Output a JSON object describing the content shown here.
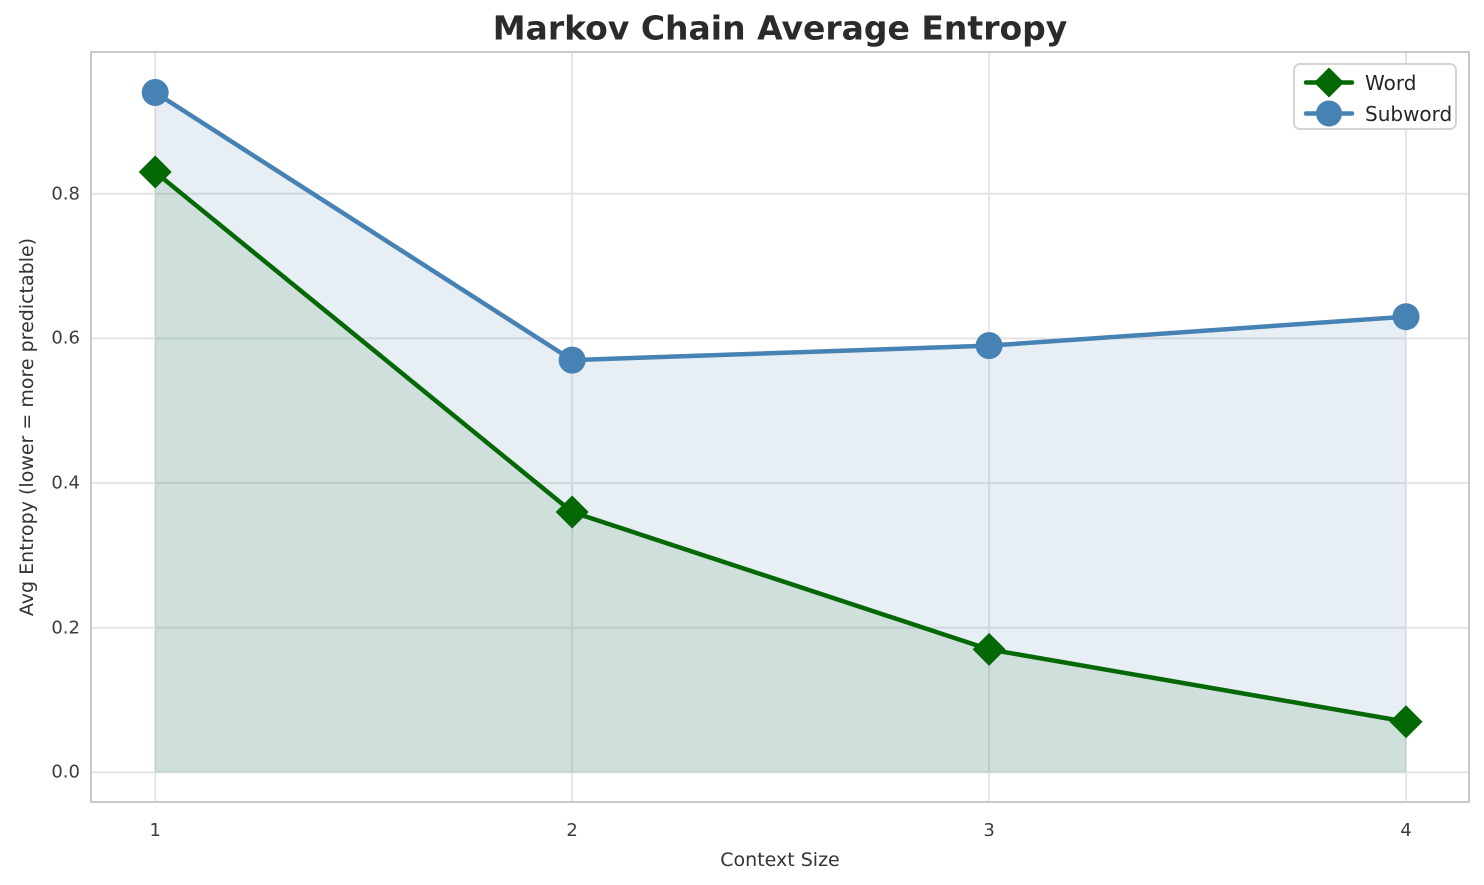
{
  "chart_data": {
    "type": "line",
    "title": "Markov Chain Average Entropy",
    "xlabel": "Context Size",
    "ylabel": "Avg Entropy (lower = more predictable)",
    "x": [
      1,
      2,
      3,
      4
    ],
    "series": [
      {
        "name": "Word",
        "values": [
          0.83,
          0.36,
          0.17,
          0.07
        ],
        "color": "#046804",
        "marker": "diamond",
        "fill": "rgba(0,100,0,0.10)"
      },
      {
        "name": "Subword",
        "values": [
          0.94,
          0.57,
          0.59,
          0.63
        ],
        "color": "#4682b4",
        "marker": "circle",
        "fill": "rgba(70,130,180,0.13)"
      }
    ],
    "fill_to_zero": true,
    "xticks": [
      1,
      2,
      3,
      4
    ],
    "xtick_labels": [
      "1",
      "2",
      "3",
      "4"
    ],
    "yticks": [
      0.0,
      0.2,
      0.4,
      0.6,
      0.8
    ],
    "ytick_labels": [
      "0.0",
      "0.2",
      "0.4",
      "0.6",
      "0.8"
    ],
    "xlim": [
      0.846,
      4.151
    ],
    "ylim": [
      -0.041,
      0.996
    ],
    "grid": true,
    "legend_position": "upper right"
  },
  "colors": {
    "grid": "#e5e5e5",
    "spine": "#c9c9c9",
    "title_text": "#2b2b2b",
    "tick_text": "#3d3d3d",
    "word_green": "#046804",
    "subword_blue": "#4682b4"
  }
}
